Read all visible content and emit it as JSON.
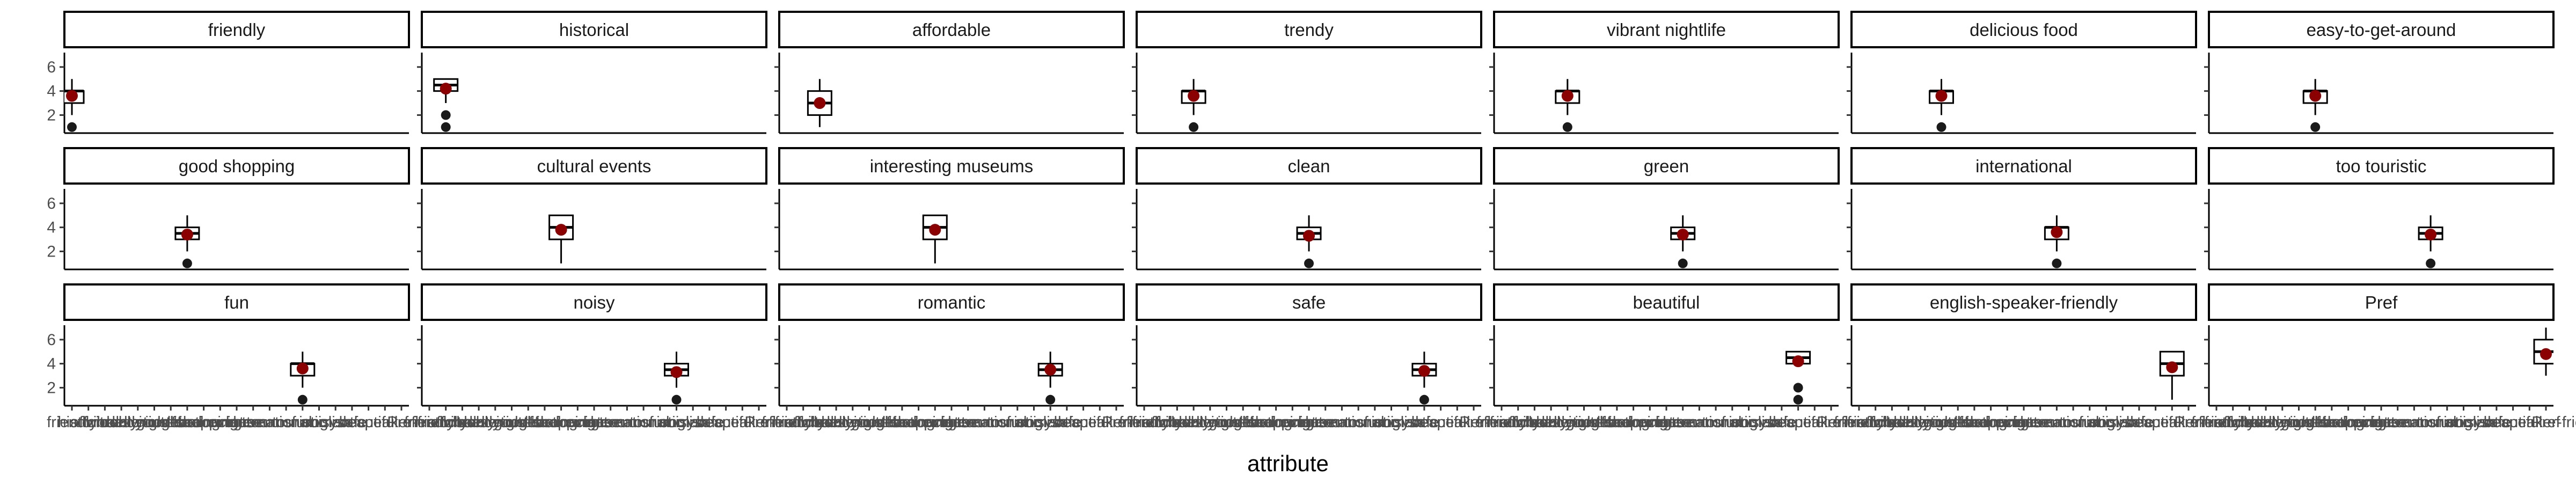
{
  "chart_data": {
    "type": "boxplot",
    "facet_layout": {
      "rows": 3,
      "cols": 7
    },
    "xlabel": "attribute",
    "ylabel": "",
    "ylim": [
      0.5,
      7.2
    ],
    "yticks": [
      2,
      4,
      6
    ],
    "categories": [
      "friendly",
      "historical",
      "affordable",
      "trendy",
      "vibrant nightlife",
      "delicious food",
      "easy-to-get-around",
      "good shopping",
      "cultural events",
      "interesting museums",
      "clean",
      "green",
      "international",
      "too touristic",
      "fun",
      "noisy",
      "romantic",
      "safe",
      "beautiful",
      "english-speaker-friendly",
      "Pref"
    ],
    "facets": [
      {
        "label": "friendly",
        "category_index": 0,
        "box": {
          "min": 2,
          "q1": 3,
          "median": 4,
          "q3": 4,
          "max": 5
        },
        "outliers": [
          1
        ],
        "mean": 3.6
      },
      {
        "label": "historical",
        "category_index": 1,
        "box": {
          "min": 3,
          "q1": 4,
          "median": 4.5,
          "q3": 5,
          "max": 5
        },
        "outliers": [
          1,
          2
        ],
        "mean": 4.2
      },
      {
        "label": "affordable",
        "category_index": 2,
        "box": {
          "min": 1,
          "q1": 2,
          "median": 3,
          "q3": 4,
          "max": 5
        },
        "outliers": [],
        "mean": 3.0
      },
      {
        "label": "trendy",
        "category_index": 3,
        "box": {
          "min": 2,
          "q1": 3,
          "median": 4,
          "q3": 4,
          "max": 5
        },
        "outliers": [
          1
        ],
        "mean": 3.6
      },
      {
        "label": "vibrant nightlife",
        "category_index": 4,
        "box": {
          "min": 2,
          "q1": 3,
          "median": 4,
          "q3": 4,
          "max": 5
        },
        "outliers": [
          1
        ],
        "mean": 3.6
      },
      {
        "label": "delicious food",
        "category_index": 5,
        "box": {
          "min": 2,
          "q1": 3,
          "median": 4,
          "q3": 4,
          "max": 5
        },
        "outliers": [
          1
        ],
        "mean": 3.6
      },
      {
        "label": "easy-to-get-around",
        "category_index": 6,
        "box": {
          "min": 2,
          "q1": 3,
          "median": 4,
          "q3": 4,
          "max": 5
        },
        "outliers": [
          1
        ],
        "mean": 3.6
      },
      {
        "label": "good shopping",
        "category_index": 7,
        "box": {
          "min": 2,
          "q1": 3,
          "median": 3.5,
          "q3": 4,
          "max": 5
        },
        "outliers": [
          1
        ],
        "mean": 3.4
      },
      {
        "label": "cultural events",
        "category_index": 8,
        "box": {
          "min": 1,
          "q1": 3,
          "median": 4,
          "q3": 5,
          "max": 5
        },
        "outliers": [],
        "mean": 3.8
      },
      {
        "label": "interesting museums",
        "category_index": 9,
        "box": {
          "min": 1,
          "q1": 3,
          "median": 4,
          "q3": 5,
          "max": 5
        },
        "outliers": [],
        "mean": 3.8
      },
      {
        "label": "clean",
        "category_index": 10,
        "box": {
          "min": 2,
          "q1": 3,
          "median": 3.5,
          "q3": 4,
          "max": 5
        },
        "outliers": [
          1
        ],
        "mean": 3.3
      },
      {
        "label": "green",
        "category_index": 11,
        "box": {
          "min": 2,
          "q1": 3,
          "median": 3.5,
          "q3": 4,
          "max": 5
        },
        "outliers": [
          1
        ],
        "mean": 3.4
      },
      {
        "label": "international",
        "category_index": 12,
        "box": {
          "min": 2,
          "q1": 3,
          "median": 4,
          "q3": 4,
          "max": 5
        },
        "outliers": [
          1
        ],
        "mean": 3.6
      },
      {
        "label": "too touristic",
        "category_index": 13,
        "box": {
          "min": 2,
          "q1": 3,
          "median": 3.5,
          "q3": 4,
          "max": 5
        },
        "outliers": [
          1
        ],
        "mean": 3.4
      },
      {
        "label": "fun",
        "category_index": 14,
        "box": {
          "min": 2,
          "q1": 3,
          "median": 4,
          "q3": 4,
          "max": 5
        },
        "outliers": [
          1
        ],
        "mean": 3.6
      },
      {
        "label": "noisy",
        "category_index": 15,
        "box": {
          "min": 2,
          "q1": 3,
          "median": 3.5,
          "q3": 4,
          "max": 5
        },
        "outliers": [
          1
        ],
        "mean": 3.3
      },
      {
        "label": "romantic",
        "category_index": 16,
        "box": {
          "min": 2,
          "q1": 3,
          "median": 3.5,
          "q3": 4,
          "max": 5
        },
        "outliers": [
          1
        ],
        "mean": 3.5
      },
      {
        "label": "safe",
        "category_index": 17,
        "box": {
          "min": 2,
          "q1": 3,
          "median": 3.5,
          "q3": 4,
          "max": 5
        },
        "outliers": [
          1
        ],
        "mean": 3.4
      },
      {
        "label": "beautiful",
        "category_index": 18,
        "box": {
          "min": 4,
          "q1": 4,
          "median": 4.5,
          "q3": 5,
          "max": 5
        },
        "outliers": [
          1,
          2
        ],
        "mean": 4.2
      },
      {
        "label": "english-speaker-friendly",
        "category_index": 19,
        "box": {
          "min": 1,
          "q1": 3,
          "median": 4,
          "q3": 5,
          "max": 5
        },
        "outliers": [],
        "mean": 3.7
      },
      {
        "label": "Pref",
        "category_index": 20,
        "box": {
          "min": 3,
          "q1": 4,
          "median": 5,
          "q3": 6,
          "max": 7
        },
        "outliers": [],
        "mean": 4.8
      }
    ],
    "colors": {
      "mean_point": "#8b0000",
      "outlier": "#1a1a1a",
      "box_outline": "#000000"
    },
    "grid": false
  }
}
